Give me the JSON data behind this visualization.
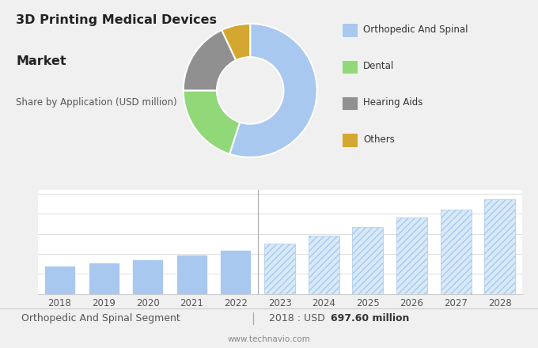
{
  "title_line1": "3D Printing Medical Devices",
  "title_line2": "Market",
  "subtitle": "Share by Application (USD million)",
  "bg_top": "#dcdcdc",
  "bg_bottom": "#f0f0f0",
  "pie_labels": [
    "Orthopedic And Spinal",
    "Dental",
    "Hearing Aids",
    "Others"
  ],
  "pie_sizes": [
    55,
    20,
    18,
    7
  ],
  "pie_colors": [
    "#a8c8f0",
    "#90d878",
    "#909090",
    "#d4a830"
  ],
  "bar_years_solid": [
    2018,
    2019,
    2020,
    2021,
    2022
  ],
  "bar_values_solid": [
    697.6,
    780,
    870,
    980,
    1100
  ],
  "bar_years_hatch": [
    2023,
    2024,
    2025,
    2026,
    2027,
    2028
  ],
  "bar_values_hatch": [
    1250,
    1450,
    1680,
    1900,
    2100,
    2350
  ],
  "bar_color_solid": "#a8c8f0",
  "bar_color_hatch": "#a8c8f0",
  "hatch_pattern": "////",
  "footer_left": "Orthopedic And Spinal Segment",
  "footer_right_prefix": "2018 : USD ",
  "footer_right_bold": "697.60 million",
  "footer_url": "www.technavio.com",
  "bar_ylim": [
    0,
    2600
  ]
}
